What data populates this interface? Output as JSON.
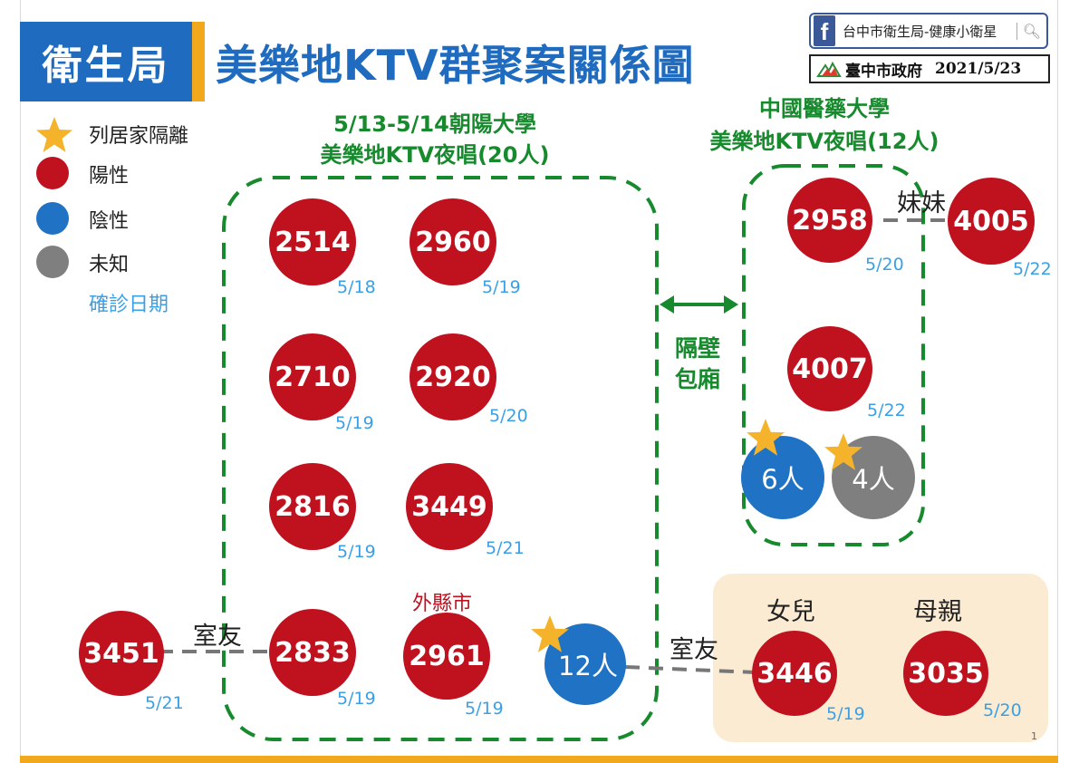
{
  "header": {
    "dept": "衛生局",
    "title": "美樂地KTV群聚案關係圖",
    "fb_page": "台中市衛生局-健康小衛星",
    "gov_name": "臺中市政府",
    "date": "2021/5/23"
  },
  "legend": {
    "quarantine": "列居家隔離",
    "positive": "陽性",
    "negative": "陰性",
    "unknown": "未知",
    "diagnosis_date": "確診日期"
  },
  "colors": {
    "positive": "#c0111f",
    "negative": "#1f72c4",
    "unknown": "#7f7f7f",
    "group_border": "#178a2e",
    "date_text": "#3aa0e6",
    "title_blue": "#1f6bbf",
    "accent": "#f2a81d"
  },
  "group_a": {
    "title_line1": "5/13-5/14朝陽大學",
    "title_line2": "美樂地KTV夜唱(20人)",
    "cases": [
      {
        "id": "2514",
        "date": "5/18"
      },
      {
        "id": "2960",
        "date": "5/19"
      },
      {
        "id": "2710",
        "date": "5/19"
      },
      {
        "id": "2920",
        "date": "5/20"
      },
      {
        "id": "2816",
        "date": "5/19"
      },
      {
        "id": "3449",
        "date": "5/21"
      },
      {
        "id": "2833",
        "date": "5/19"
      },
      {
        "id": "2961",
        "date": "5/19",
        "note": "外縣市"
      }
    ],
    "quarantined_negative": "12人"
  },
  "group_b": {
    "title_line1": "中國醫藥大學",
    "title_line2": "美樂地KTV夜唱(12人)",
    "cases": [
      {
        "id": "2958",
        "date": "5/20"
      },
      {
        "id": "4007",
        "date": "5/22"
      }
    ],
    "quarantined_negative": "6人",
    "quarantined_unknown": "4人"
  },
  "adjacent": {
    "line1": "隔壁",
    "line2": "包廂"
  },
  "external_cases": [
    {
      "id": "3451",
      "date": "5/21",
      "relation": "室友"
    },
    {
      "id": "4005",
      "date": "5/22",
      "relation": "妹妹"
    }
  ],
  "family": {
    "relation_to_group": "室友",
    "daughter_label": "女兒",
    "mother_label": "母親",
    "daughter": {
      "id": "3446",
      "date": "5/19"
    },
    "mother": {
      "id": "3035",
      "date": "5/20"
    }
  },
  "page_number": "1"
}
